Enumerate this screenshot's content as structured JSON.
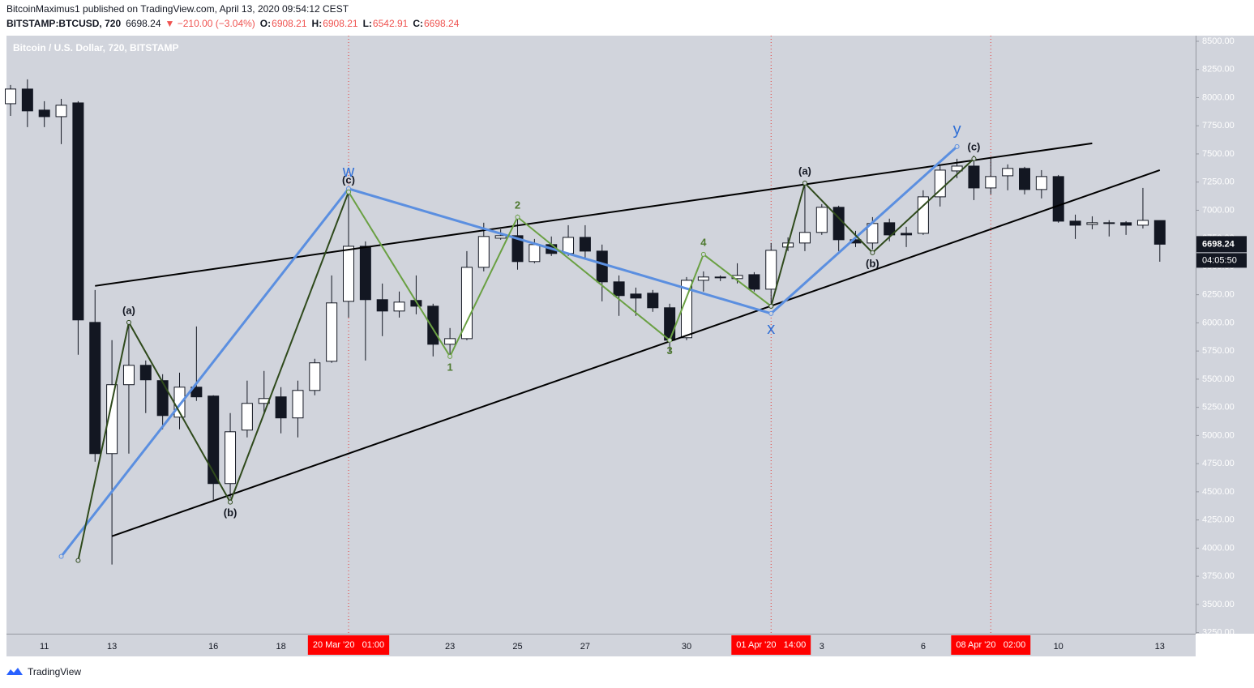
{
  "header": {
    "author_line": "BitcoinMaximus1 published on TradingView.com, April 13, 2020 09:54:12 CEST",
    "symbol": "BITSTAMP:BTCUSD, 720",
    "last": "6698.24",
    "change": "▼ −210.00 (−3.04%)",
    "ohlc": [
      {
        "label": "O:",
        "value": "6908.21"
      },
      {
        "label": "H:",
        "value": "6908.21"
      },
      {
        "label": "L:",
        "value": "6542.91"
      },
      {
        "label": "C:",
        "value": "6698.24"
      }
    ]
  },
  "footer": {
    "brand": "TradingView"
  },
  "chart_data": {
    "type": "candlestick",
    "title": "Bitcoin / U.S. Dollar, 720, BITSTAMP",
    "categories": [
      null,
      null,
      "11",
      null,
      null,
      null,
      "13",
      null,
      null,
      null,
      null,
      null,
      "16",
      null,
      null,
      null,
      "18",
      null,
      null,
      null,
      null,
      null,
      null,
      null,
      null,
      null,
      "23",
      null,
      null,
      null,
      "25",
      null,
      null,
      null,
      "27",
      null,
      null,
      null,
      null,
      null,
      "30",
      null,
      null,
      null,
      null,
      null,
      null,
      null,
      "3",
      null,
      null,
      null,
      null,
      null,
      "6",
      null,
      null,
      null,
      null,
      null,
      null,
      null,
      "10",
      null,
      null,
      null,
      null,
      null,
      "13"
    ],
    "open": [
      7946,
      8076,
      7889,
      7831,
      7953,
      6004,
      4839,
      5451,
      5623,
      5487,
      5163,
      5429,
      5350,
      4573,
      5048,
      5285,
      5343,
      5156,
      5400,
      5659,
      6191,
      6680,
      6206,
      6105,
      6199,
      6148,
      5810,
      5860,
      6493,
      6752,
      6774,
      6544,
      6695,
      6616,
      6759,
      6637,
      6364,
      6256,
      6263,
      6134,
      5868,
      6378,
      6400,
      6393,
      6428,
      6299,
      6673,
      6709,
      6803,
      7026,
      6738,
      6709,
      6889,
      6795,
      6795,
      7119,
      7349,
      7392,
      7198,
      7306,
      7371,
      7184,
      7299,
      6903,
      6874,
      6889,
      6889,
      6867,
      6908.21
    ],
    "high": [
      8112,
      8162,
      7968,
      7989,
      7968,
      6292,
      5846,
      6004,
      5666,
      5544,
      5558,
      5968,
      5357,
      5199,
      5487,
      5573,
      5429,
      5487,
      5681,
      6421,
      7198,
      6723,
      6349,
      6278,
      6421,
      6170,
      5954,
      6637,
      6889,
      6831,
      6961,
      6745,
      6767,
      6867,
      6867,
      6695,
      6421,
      6313,
      6292,
      6170,
      6407,
      6457,
      6421,
      6529,
      6450,
      6709,
      6759,
      7227,
      7054,
      7040,
      6817,
      6939,
      6925,
      6853,
      7177,
      7392,
      7457,
      7486,
      7464,
      7407,
      7385,
      7356,
      7313,
      6961,
      6946,
      6911,
      6903,
      7198,
      6908.21
    ],
    "low": [
      7838,
      7738,
      7738,
      7587,
      5717,
      4767,
      3854,
      4839,
      5199,
      5055,
      5055,
      5307,
      4429,
      4444,
      4983,
      5199,
      5019,
      4983,
      5357,
      5645,
      6047,
      5666,
      5882,
      6047,
      6076,
      5702,
      5702,
      5846,
      6457,
      6738,
      6472,
      6529,
      6594,
      6594,
      6565,
      6191,
      6062,
      6062,
      6098,
      5738,
      5846,
      6278,
      6371,
      6350,
      6278,
      6134,
      6637,
      6637,
      6781,
      6637,
      6673,
      6652,
      6724,
      6673,
      6781,
      7033,
      7284,
      7090,
      7141,
      7177,
      7141,
      7105,
      6889,
      6745,
      6831,
      6767,
      6781,
      6838,
      6542.91
    ],
    "close": [
      8076,
      7882,
      7831,
      7932,
      6026,
      4839,
      5451,
      5623,
      5494,
      5177,
      5429,
      5343,
      4573,
      5033,
      5285,
      5328,
      5156,
      5400,
      5645,
      6177,
      6680,
      6206,
      6105,
      6184,
      6148,
      5810,
      5860,
      6493,
      6767,
      6774,
      6544,
      6695,
      6616,
      6759,
      6637,
      6364,
      6242,
      6220,
      6134,
      5846,
      6378,
      6407,
      6407,
      6421,
      6299,
      6644,
      6709,
      6803,
      7026,
      6738,
      6709,
      6882,
      6781,
      6781,
      7119,
      7356,
      7392,
      7198,
      7299,
      7371,
      7184,
      7299,
      6903,
      6867,
      6889,
      6882,
      6867,
      6910,
      6698.24
    ],
    "up_color": "#ffffff",
    "down_color": "#131722",
    "ylim": [
      3240,
      8550
    ],
    "yticks": [
      {
        "value": 3250,
        "label": "3250.00"
      },
      {
        "value": 3500,
        "label": "3500.00"
      },
      {
        "value": 3750,
        "label": "3750.00"
      },
      {
        "value": 4000,
        "label": "4000.00"
      },
      {
        "value": 4250,
        "label": "4250.00"
      },
      {
        "value": 4500,
        "label": "4500.00"
      },
      {
        "value": 4750,
        "label": "4750.00"
      },
      {
        "value": 5000,
        "label": "5000.00"
      },
      {
        "value": 5250,
        "label": "5250.00"
      },
      {
        "value": 5500,
        "label": "5500.00"
      },
      {
        "value": 5750,
        "label": "5750.00"
      },
      {
        "value": 6000,
        "label": "6000.00"
      },
      {
        "value": 6250,
        "label": "6250.00"
      },
      {
        "value": 6500,
        "label": "6500.00"
      },
      {
        "value": 6750,
        "label": "6750.00"
      },
      {
        "value": 7000,
        "label": "7000.00"
      },
      {
        "value": 7250,
        "label": "7250.00"
      },
      {
        "value": 7500,
        "label": "7500.00"
      },
      {
        "value": 7750,
        "label": "7750.00"
      },
      {
        "value": 8000,
        "label": "8000.00"
      },
      {
        "value": 8250,
        "label": "8250.00"
      },
      {
        "value": 8500,
        "label": "8500.00"
      }
    ],
    "last_price_label": "6698.24",
    "countdown": "04:05:50",
    "time_markers": [
      {
        "x": 20,
        "label": "20 Mar '20   01:00"
      },
      {
        "x": 45,
        "label": "01 Apr '20   14:00"
      },
      {
        "x": 58,
        "label": "08 Apr '20   02:00"
      }
    ],
    "drawings": [
      {
        "color": "#000000",
        "width": 2,
        "x": [
          5,
          64
        ],
        "y": [
          6328,
          7594
        ]
      },
      {
        "color": "#000000",
        "width": 2,
        "x": [
          6,
          68
        ],
        "y": [
          4106,
          7356
        ]
      },
      {
        "color": "#5b8fe0",
        "width": 3,
        "x": [
          3,
          20,
          45,
          56
        ],
        "y": [
          3926,
          7191,
          6083,
          7565
        ],
        "labels": [
          null,
          "w",
          "x",
          "y"
        ],
        "label_color": "#2f6fd6"
      },
      {
        "color": "#2f4a1c",
        "width": 2,
        "x": [
          4,
          7,
          13,
          20
        ],
        "y": [
          3890,
          6004,
          4408,
          7162
        ],
        "labels": [
          null,
          "(a)",
          "(b)",
          "(c)"
        ],
        "label_color": "#131722"
      },
      {
        "color": "#6aa043",
        "width": 2,
        "x": [
          20,
          26,
          30,
          39,
          41,
          45
        ],
        "y": [
          7162,
          5702,
          6939,
          5846,
          6608,
          6148
        ],
        "labels": [
          null,
          "1",
          "2",
          "3",
          "4",
          null
        ],
        "label_color": "#4f7a31"
      },
      {
        "color": "#2f4a1c",
        "width": 2,
        "x": [
          45,
          47,
          51,
          57
        ],
        "y": [
          6148,
          7241,
          6623,
          7457
        ],
        "labels": [
          null,
          "(a)",
          "(b)",
          "(c)"
        ],
        "label_color": "#131722"
      }
    ]
  }
}
